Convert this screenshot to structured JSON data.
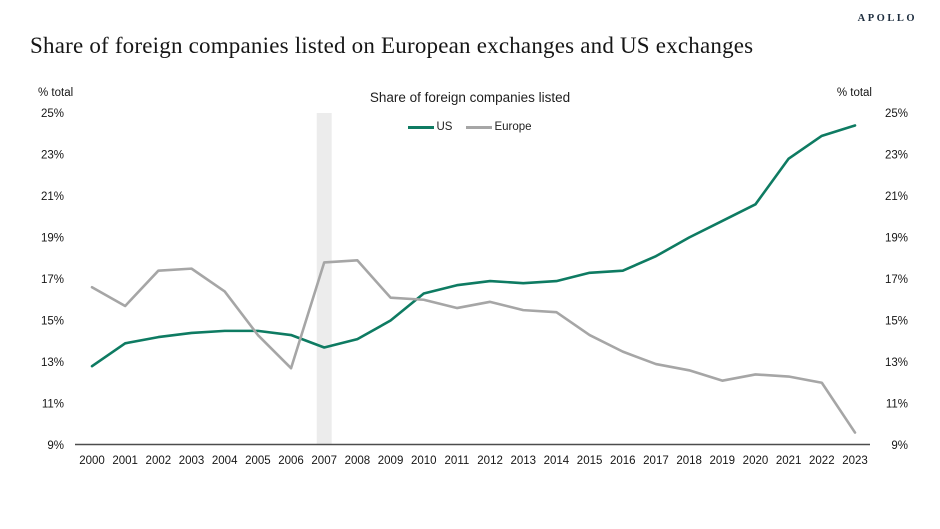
{
  "header": {
    "logo": "APOLLO",
    "title": "Share of foreign companies listed on European exchanges and US exchanges"
  },
  "chart": {
    "title": "Share of foreign companies listed",
    "y_axis_unit_left": "% total",
    "y_axis_unit_right": "% total"
  },
  "chart_data": {
    "type": "line",
    "title": "Share of foreign companies listed",
    "categories": [
      "2000",
      "2001",
      "2002",
      "2003",
      "2004",
      "2005",
      "2006",
      "2007",
      "2008",
      "2009",
      "2010",
      "2011",
      "2012",
      "2013",
      "2014",
      "2015",
      "2016",
      "2017",
      "2018",
      "2019",
      "2020",
      "2021",
      "2022",
      "2023"
    ],
    "series": [
      {
        "name": "US",
        "color": "#0e7b62",
        "values": [
          12.8,
          13.9,
          14.2,
          14.4,
          14.5,
          14.5,
          14.3,
          13.7,
          14.1,
          15.0,
          16.3,
          16.7,
          16.9,
          16.8,
          16.9,
          17.3,
          17.4,
          18.1,
          19.0,
          19.8,
          20.6,
          22.8,
          23.9,
          24.4
        ]
      },
      {
        "name": "Europe",
        "color": "#a6a6a6",
        "values": [
          16.6,
          15.7,
          17.4,
          17.5,
          16.4,
          14.3,
          12.7,
          17.8,
          17.9,
          16.1,
          16.0,
          15.6,
          15.9,
          15.5,
          15.4,
          14.3,
          13.5,
          12.9,
          12.6,
          12.1,
          12.4,
          12.3,
          12.0,
          9.6
        ]
      }
    ],
    "ylim": [
      9,
      25
    ],
    "ytick_step": 2,
    "ytick_labels": [
      "25%",
      "23%",
      "21%",
      "19%",
      "17%",
      "15%",
      "13%",
      "11%",
      "9%"
    ],
    "ytick_suffix": "%",
    "grid": false,
    "legend_position": "top-center",
    "dual_y_axis_labels": true,
    "highlight_band": {
      "category": "2007",
      "color": "#ececec"
    },
    "axis_line_color": "#4d4d4d"
  }
}
